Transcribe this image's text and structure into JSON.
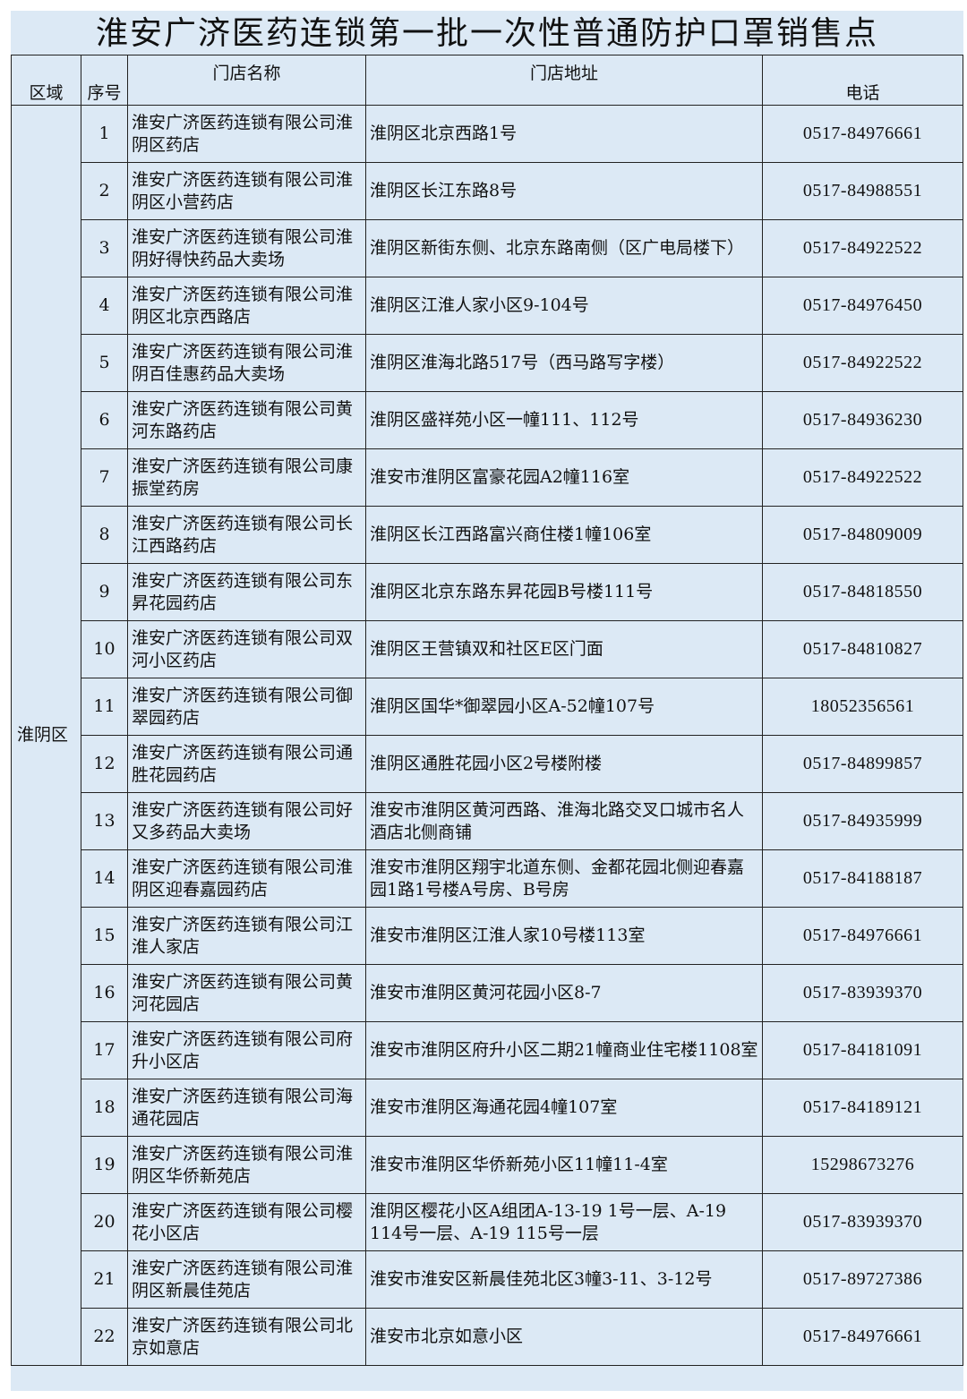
{
  "title": "淮安广济医药连锁第一批一次性普通防护口罩销售点",
  "headers": {
    "region": "区域",
    "index": "序号",
    "store_name": "门店名称",
    "address": "门店地址",
    "phone": "电话"
  },
  "region": "淮阴区",
  "rows": [
    {
      "no": "1",
      "name": "淮安广济医药连锁有限公司淮阴区药店",
      "address": "淮阴区北京西路1号",
      "phone": "0517-84976661"
    },
    {
      "no": "2",
      "name": "淮安广济医药连锁有限公司淮阴区小营药店",
      "address": "淮阴区长江东路8号",
      "phone": "0517-84988551"
    },
    {
      "no": "3",
      "name": "淮安广济医药连锁有限公司淮阴好得快药品大卖场",
      "address": "淮阴区新街东侧、北京东路南侧（区广电局楼下）",
      "phone": "0517-84922522"
    },
    {
      "no": "4",
      "name": "淮安广济医药连锁有限公司淮阴区北京西路店",
      "address": "淮阴区江淮人家小区9-104号",
      "phone": "0517-84976450"
    },
    {
      "no": "5",
      "name": "淮安广济医药连锁有限公司淮阴百佳惠药品大卖场",
      "address": "淮阴区淮海北路517号（西马路写字楼）",
      "phone": "0517-84922522"
    },
    {
      "no": "6",
      "name": "淮安广济医药连锁有限公司黄河东路药店",
      "address": "淮阴区盛祥苑小区一幢111、112号",
      "phone": "0517-84936230"
    },
    {
      "no": "7",
      "name": "淮安广济医药连锁有限公司康振堂药房",
      "address": "淮安市淮阴区富豪花园A2幢116室",
      "phone": "0517-84922522"
    },
    {
      "no": "8",
      "name": "淮安广济医药连锁有限公司长江西路药店",
      "address": "淮阴区长江西路富兴商住楼1幢106室",
      "phone": "0517-84809009"
    },
    {
      "no": "9",
      "name": "淮安广济医药连锁有限公司东昇花园药店",
      "address": "淮阴区北京东路东昇花园B号楼111号",
      "phone": "0517-84818550"
    },
    {
      "no": "10",
      "name": "淮安广济医药连锁有限公司双河小区药店",
      "address": "淮阴区王营镇双和社区E区门面",
      "phone": "0517-84810827"
    },
    {
      "no": "11",
      "name": "淮安广济医药连锁有限公司御翠园药店",
      "address": "淮阴区国华*御翠园小区A-52幢107号",
      "phone": "18052356561"
    },
    {
      "no": "12",
      "name": "淮安广济医药连锁有限公司通胜花园药店",
      "address": "淮阴区通胜花园小区2号楼附楼",
      "phone": "0517-84899857"
    },
    {
      "no": "13",
      "name": "淮安广济医药连锁有限公司好又多药品大卖场",
      "address": "淮安市淮阴区黄河西路、淮海北路交叉口城市名人酒店北侧商铺",
      "phone": "0517-84935999"
    },
    {
      "no": "14",
      "name": "淮安广济医药连锁有限公司淮阴区迎春嘉园药店",
      "address": "淮安市淮阴区翔宇北道东侧、金都花园北侧迎春嘉园1路1号楼A号房、B号房",
      "phone": "0517-84188187"
    },
    {
      "no": "15",
      "name": "淮安广济医药连锁有限公司江淮人家店",
      "address": "淮安市淮阴区江淮人家10号楼113室",
      "phone": "0517-84976661"
    },
    {
      "no": "16",
      "name": "淮安广济医药连锁有限公司黄河花园店",
      "address": "淮安市淮阴区黄河花园小区8-7",
      "phone": "0517-83939370"
    },
    {
      "no": "17",
      "name": "淮安广济医药连锁有限公司府升小区店",
      "address": "淮安市淮阴区府升小区二期21幢商业住宅楼1108室",
      "phone": "0517-84181091"
    },
    {
      "no": "18",
      "name": "淮安广济医药连锁有限公司海通花园店",
      "address": "淮安市淮阴区海通花园4幢107室",
      "phone": "0517-84189121"
    },
    {
      "no": "19",
      "name": "淮安广济医药连锁有限公司淮阴区华侨新苑店",
      "address": "淮安市淮阴区华侨新苑小区11幢11-4室",
      "phone": "15298673276"
    },
    {
      "no": "20",
      "name": "淮安广济医药连锁有限公司樱花小区店",
      "address": "淮阴区樱花小区A组团A-13-19 1号一层、A-19 114号一层、A-19 115号一层",
      "phone": "0517-83939370"
    },
    {
      "no": "21",
      "name": "淮安广济医药连锁有限公司淮阴区新晨佳苑店",
      "address": "淮安市淮安区新晨佳苑北区3幢3-11、3-12号",
      "phone": "0517-89727386"
    },
    {
      "no": "22",
      "name": "淮安广济医药连锁有限公司北京如意店",
      "address": "淮安市北京如意小区",
      "phone": "0517-84976661"
    }
  ]
}
